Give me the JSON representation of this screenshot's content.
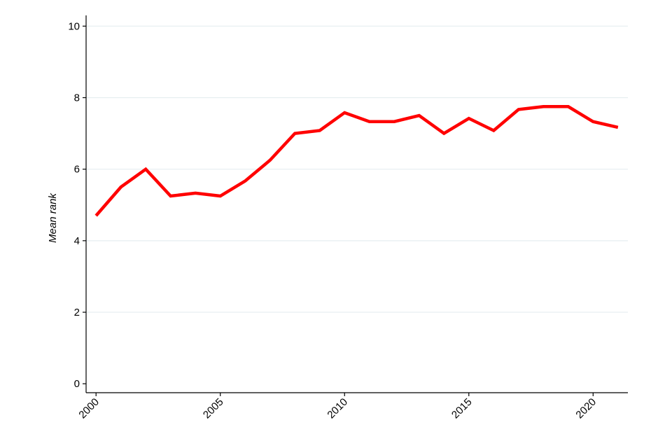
{
  "chart_data": {
    "type": "line",
    "title": "",
    "xlabel": "",
    "ylabel": "Mean rank",
    "x": [
      2000,
      2001,
      2002,
      2003,
      2004,
      2005,
      2006,
      2007,
      2008,
      2009,
      2010,
      2011,
      2012,
      2013,
      2014,
      2015,
      2016,
      2017,
      2018,
      2019,
      2020,
      2021
    ],
    "series": [
      {
        "values": [
          4.7,
          5.5,
          6.0,
          5.25,
          5.33,
          5.25,
          5.67,
          6.25,
          7.0,
          7.08,
          7.58,
          7.33,
          7.33,
          7.5,
          7.0,
          7.42,
          7.08,
          7.67,
          7.75,
          7.75,
          7.33,
          7.17
        ],
        "color": "#ff0000"
      }
    ],
    "xlim": [
      1999.6,
      2021.4
    ],
    "ylim": [
      -0.25,
      10.3
    ],
    "xticks": [
      "2000",
      "2005",
      "2010",
      "2015",
      "2020"
    ],
    "yticks": [
      "0",
      "2",
      "4",
      "6",
      "8",
      "10"
    ],
    "grid": "horizontal",
    "grid_color": "#e6eef0",
    "axis_color": "#000000",
    "legend": "none"
  }
}
